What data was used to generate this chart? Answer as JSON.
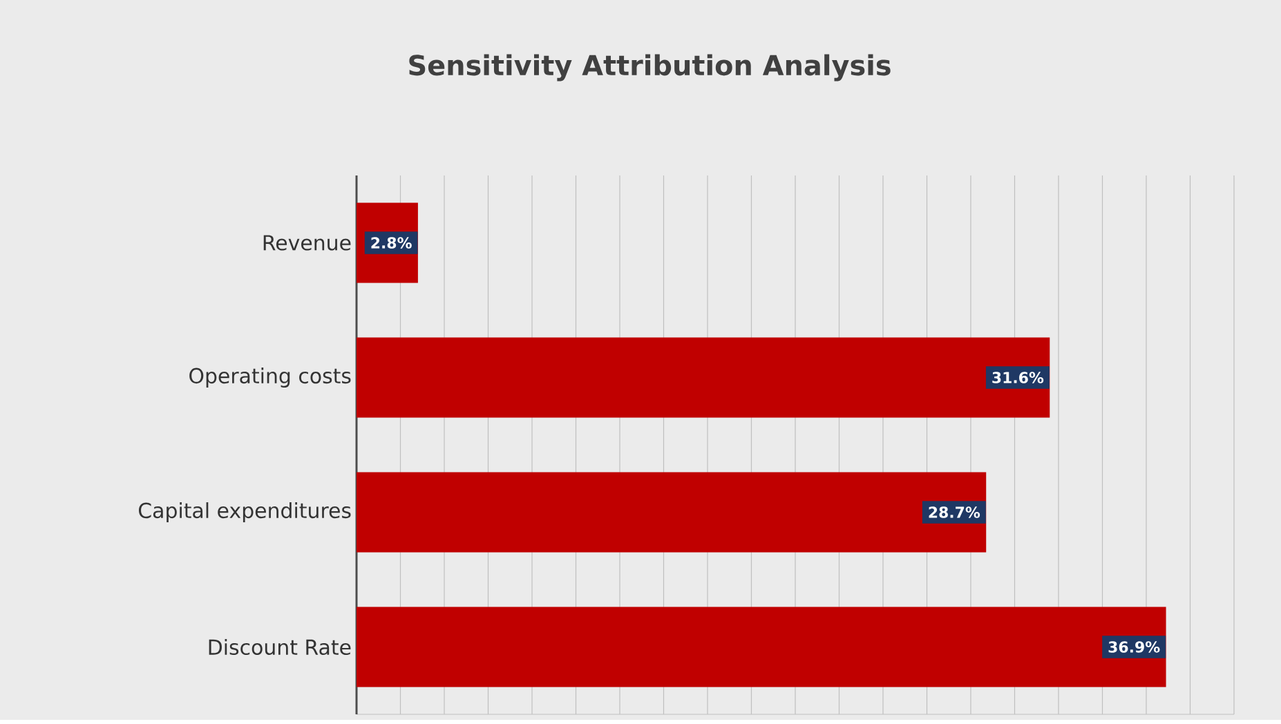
{
  "chart_data": {
    "type": "bar",
    "orientation": "horizontal",
    "title": "Sensitivity Attribution Analysis",
    "categories": [
      "Revenue",
      "Operating costs",
      "Capital expenditures",
      "Discount Rate"
    ],
    "values": [
      2.8,
      31.6,
      28.7,
      36.9
    ],
    "color": "#c00000",
    "value_labels": [
      "2.8%",
      "31.6%",
      "28.7%",
      "36.9%"
    ],
    "xlim": [
      0,
      40
    ],
    "grid": "x",
    "tick_labels": "y"
  }
}
